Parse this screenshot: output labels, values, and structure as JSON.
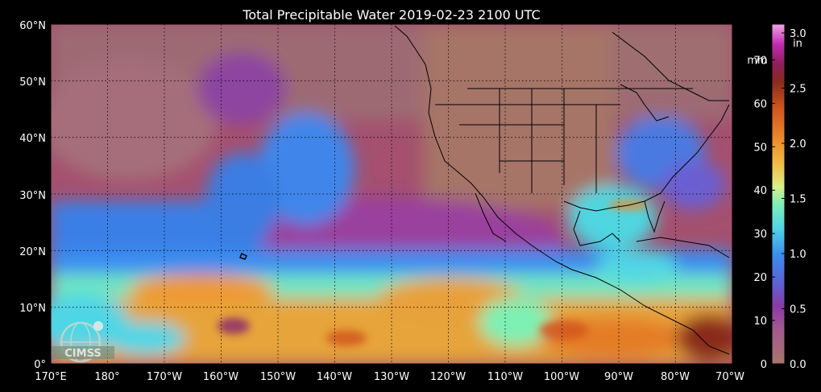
{
  "title": "Total Precipitable Water  2019-02-23 2100 UTC",
  "logo_text": "CIMSS",
  "map": {
    "lat_ticks": [
      "60°N",
      "50°N",
      "40°N",
      "30°N",
      "20°N",
      "10°N",
      "0°"
    ],
    "lon_ticks": [
      "170°E",
      "180°",
      "170°W",
      "160°W",
      "150°W",
      "140°W",
      "130°W",
      "120°W",
      "110°W",
      "100°W",
      "90°W",
      "80°W",
      "70°W"
    ],
    "lat_range": [
      0,
      60
    ],
    "lon_range_east": [
      170,
      290
    ],
    "grid": true
  },
  "colorbar": {
    "unit_left": "mm",
    "unit_right": "in",
    "mm_ticks": [
      "0",
      "10",
      "20",
      "30",
      "40",
      "50",
      "60",
      "70"
    ],
    "in_ticks": [
      "0.0",
      "0.5",
      "1.0",
      "1.5",
      "2.0",
      "2.5",
      "3.0"
    ],
    "mm_values": [
      0,
      10,
      20,
      30,
      40,
      50,
      60,
      70
    ],
    "in_values": [
      0.0,
      0.5,
      1.0,
      1.5,
      2.0,
      2.5,
      3.0
    ],
    "max_in": 3.0,
    "stops": [
      {
        "at": 0.0,
        "color": "#a8756a"
      },
      {
        "at": 0.1,
        "color": "#a35a8f"
      },
      {
        "at": 0.17,
        "color": "#8a3aa6"
      },
      {
        "at": 0.24,
        "color": "#5a63d8"
      },
      {
        "at": 0.32,
        "color": "#3a8cf0"
      },
      {
        "at": 0.4,
        "color": "#4fd6e6"
      },
      {
        "at": 0.47,
        "color": "#7df0b4"
      },
      {
        "at": 0.52,
        "color": "#d8f08a"
      },
      {
        "at": 0.58,
        "color": "#f0c24a"
      },
      {
        "at": 0.66,
        "color": "#ee8a2a"
      },
      {
        "at": 0.75,
        "color": "#d2561e"
      },
      {
        "at": 0.83,
        "color": "#8a2a1e"
      },
      {
        "at": 0.88,
        "color": "#8c1f58"
      },
      {
        "at": 0.94,
        "color": "#c02ab0"
      },
      {
        "at": 1.0,
        "color": "#f2a6e6"
      }
    ]
  }
}
